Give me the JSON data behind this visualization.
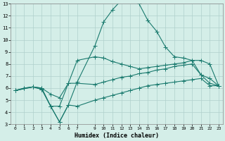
{
  "xlabel": "Humidex (Indice chaleur)",
  "bg_color": "#d4eee8",
  "grid_color": "#b0d0cc",
  "line_color": "#1a7a6e",
  "xlim": [
    -0.5,
    23.5
  ],
  "ylim": [
    3,
    13
  ],
  "xticks": [
    0,
    1,
    2,
    3,
    4,
    5,
    6,
    7,
    9,
    10,
    11,
    12,
    13,
    14,
    15,
    16,
    17,
    18,
    19,
    20,
    21,
    22,
    23
  ],
  "yticks": [
    3,
    4,
    5,
    6,
    7,
    8,
    9,
    10,
    11,
    12,
    13
  ],
  "curve_main_x": [
    0,
    1,
    2,
    3,
    4,
    5,
    6,
    7,
    9,
    10,
    11,
    12,
    13,
    14,
    15,
    16,
    17,
    18,
    19,
    20,
    21,
    22,
    23
  ],
  "curve_main_y": [
    5.8,
    6.0,
    6.1,
    5.9,
    4.5,
    3.2,
    4.6,
    6.5,
    9.5,
    11.5,
    12.5,
    13.3,
    13.3,
    13.0,
    11.6,
    10.7,
    9.4,
    8.6,
    8.5,
    8.3,
    7.1,
    6.4,
    6.2
  ],
  "curve_upper_x": [
    0,
    2,
    3,
    4,
    5,
    6,
    7,
    9,
    10,
    11,
    12,
    13,
    14,
    15,
    16,
    17,
    18,
    19,
    20,
    21,
    22,
    23
  ],
  "curve_upper_y": [
    5.8,
    6.1,
    6.0,
    5.5,
    5.2,
    6.4,
    8.3,
    8.6,
    8.5,
    8.2,
    8.0,
    7.8,
    7.6,
    7.7,
    7.8,
    7.9,
    8.0,
    8.1,
    8.3,
    8.3,
    8.0,
    6.2
  ],
  "curve_mid_x": [
    0,
    2,
    3,
    4,
    5,
    6,
    7,
    9,
    10,
    11,
    12,
    13,
    14,
    15,
    16,
    17,
    18,
    19,
    20,
    21,
    22,
    23
  ],
  "curve_mid_y": [
    5.8,
    6.1,
    6.0,
    4.5,
    4.5,
    6.4,
    6.4,
    6.3,
    6.5,
    6.7,
    6.9,
    7.0,
    7.2,
    7.3,
    7.5,
    7.6,
    7.8,
    7.9,
    8.0,
    7.1,
    6.8,
    6.2
  ],
  "curve_low_x": [
    0,
    1,
    2,
    3,
    4,
    5,
    6,
    7,
    9,
    10,
    11,
    12,
    13,
    14,
    15,
    16,
    17,
    18,
    19,
    20,
    21,
    22,
    23
  ],
  "curve_low_y": [
    5.8,
    6.0,
    6.1,
    5.9,
    4.5,
    3.2,
    4.6,
    4.5,
    5.0,
    5.2,
    5.4,
    5.6,
    5.8,
    6.0,
    6.2,
    6.3,
    6.4,
    6.5,
    6.6,
    6.7,
    6.8,
    6.2,
    6.2
  ],
  "marker_size": 4,
  "line_width": 0.8
}
